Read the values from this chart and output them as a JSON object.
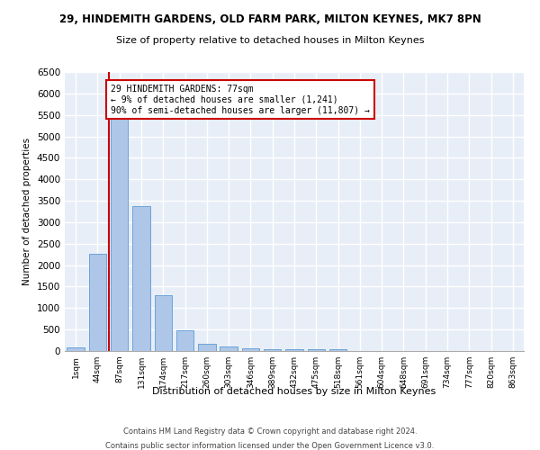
{
  "title": "29, HINDEMITH GARDENS, OLD FARM PARK, MILTON KEYNES, MK7 8PN",
  "subtitle": "Size of property relative to detached houses in Milton Keynes",
  "xlabel": "Distribution of detached houses by size in Milton Keynes",
  "ylabel": "Number of detached properties",
  "footer_line1": "Contains HM Land Registry data © Crown copyright and database right 2024.",
  "footer_line2": "Contains public sector information licensed under the Open Government Licence v3.0.",
  "bar_labels": [
    "1sqm",
    "44sqm",
    "87sqm",
    "131sqm",
    "174sqm",
    "217sqm",
    "260sqm",
    "303sqm",
    "346sqm",
    "389sqm",
    "432sqm",
    "475sqm",
    "518sqm",
    "561sqm",
    "604sqm",
    "648sqm",
    "691sqm",
    "734sqm",
    "777sqm",
    "820sqm",
    "863sqm"
  ],
  "bar_values": [
    75,
    2270,
    5430,
    3380,
    1300,
    480,
    170,
    100,
    70,
    50,
    40,
    40,
    35,
    0,
    0,
    0,
    0,
    0,
    0,
    0,
    0
  ],
  "bar_color": "#aec6e8",
  "bar_edge_color": "#5b9bd5",
  "ylim": [
    0,
    6500
  ],
  "yticks": [
    0,
    500,
    1000,
    1500,
    2000,
    2500,
    3000,
    3500,
    4000,
    4500,
    5000,
    5500,
    6000,
    6500
  ],
  "property_label": "29 HINDEMITH GARDENS: 77sqm",
  "pct_smaller": "9% of detached houses are smaller (1,241)",
  "pct_larger": "90% of semi-detached houses are larger (11,807)",
  "annotation_box_color": "#ffffff",
  "annotation_box_edge_color": "#cc0000",
  "vline_color": "#cc0000",
  "bg_color": "#e8eef7",
  "grid_color": "#ffffff",
  "fig_bg_color": "#ffffff"
}
